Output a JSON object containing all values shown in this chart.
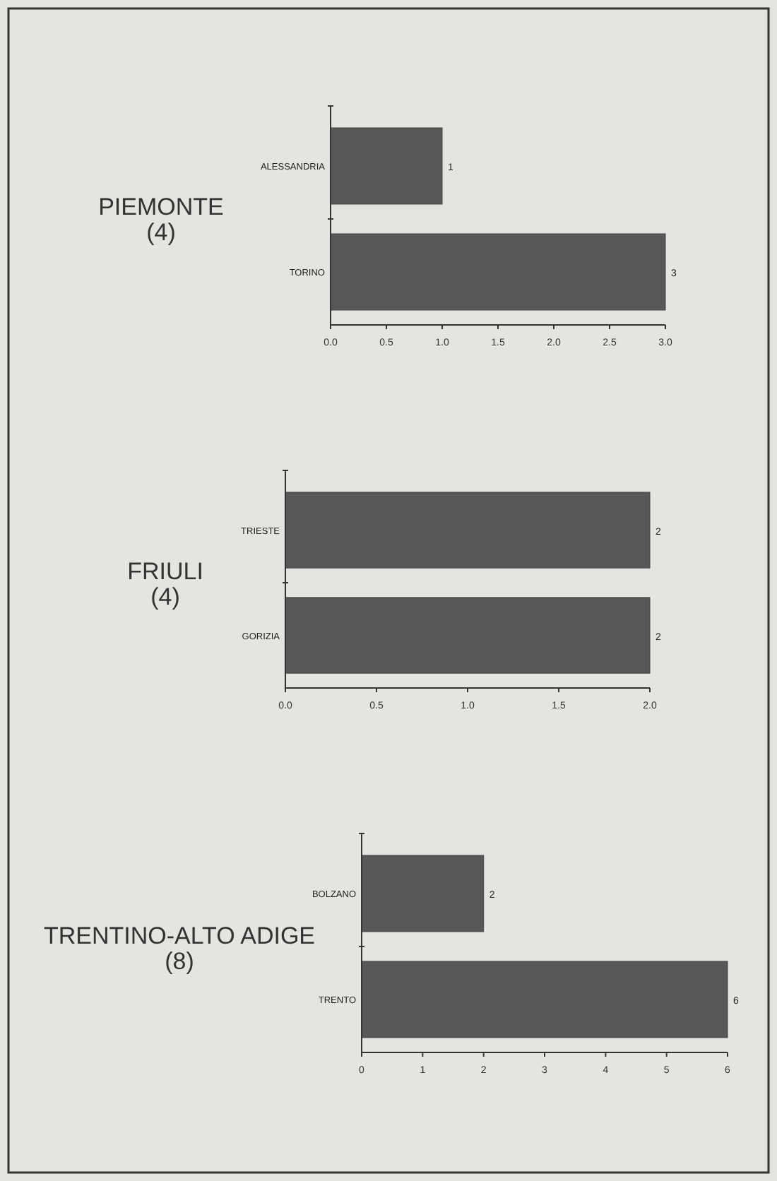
{
  "chart_data": [
    {
      "type": "bar",
      "orientation": "horizontal",
      "title": "PIEMONTE",
      "subtitle": "(4)",
      "categories": [
        "ALESSANDRIA",
        "TORINO"
      ],
      "values": [
        1,
        3
      ],
      "color": "#575757",
      "data_labels": true,
      "xlim": [
        0,
        3
      ],
      "xticks": [
        {
          "value": 0,
          "label": "0.0"
        },
        {
          "value": 0.5,
          "label": "0.5"
        },
        {
          "value": 1,
          "label": "1.0"
        },
        {
          "value": 1.5,
          "label": "1.5"
        },
        {
          "value": 2,
          "label": "2.0"
        },
        {
          "value": 2.5,
          "label": "2.5"
        },
        {
          "value": 3,
          "label": "3.0"
        }
      ],
      "grid": false
    },
    {
      "type": "bar",
      "orientation": "horizontal",
      "title": "FRIULI",
      "subtitle": "(4)",
      "categories": [
        "TRIESTE",
        "GORIZIA"
      ],
      "values": [
        2,
        2
      ],
      "color": "#575757",
      "data_labels": true,
      "xlim": [
        0,
        2
      ],
      "xticks": [
        {
          "value": 0,
          "label": "0.0"
        },
        {
          "value": 0.5,
          "label": "0.5"
        },
        {
          "value": 1,
          "label": "1.0"
        },
        {
          "value": 1.5,
          "label": "1.5"
        },
        {
          "value": 2,
          "label": "2.0"
        }
      ],
      "grid": false
    },
    {
      "type": "bar",
      "orientation": "horizontal",
      "title": "TRENTINO-ALTO ADIGE",
      "subtitle": "(8)",
      "categories": [
        "BOLZANO",
        "TRENTO"
      ],
      "values": [
        2,
        6
      ],
      "color": "#575757",
      "data_labels": true,
      "xlim": [
        0,
        6
      ],
      "xticks": [
        0,
        1,
        2,
        3,
        4,
        5,
        6
      ],
      "grid": false
    }
  ]
}
